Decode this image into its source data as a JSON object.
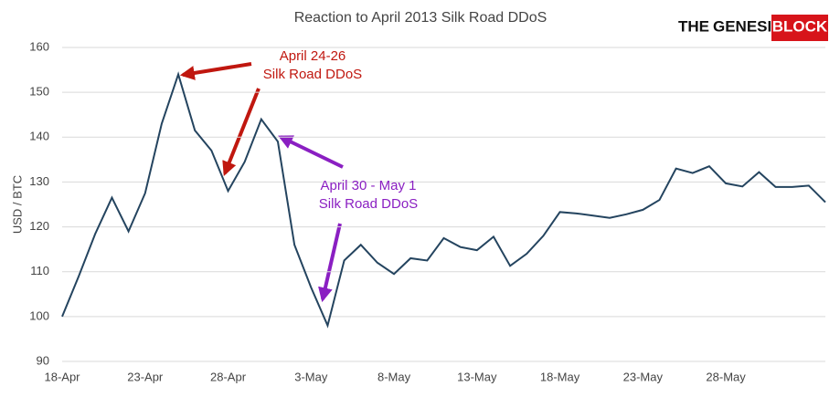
{
  "chart_data": {
    "type": "line",
    "title": "Reaction to April 2013 Silk Road DDoS",
    "y_label": "USD / BTC",
    "logo": [
      "THE",
      "GENESIS",
      "BLOCK"
    ],
    "annotations": [
      {
        "lines": [
          "April 24-26",
          "Silk Road DDoS"
        ],
        "color": "#c0170f"
      },
      {
        "lines": [
          "April 30 - May 1",
          "Silk Road DDoS"
        ],
        "color": "#8a1fc2"
      }
    ],
    "categories": [
      "18-Apr",
      null,
      null,
      null,
      null,
      "23-Apr",
      null,
      null,
      null,
      null,
      "28-Apr",
      null,
      null,
      null,
      null,
      "3-May",
      null,
      null,
      null,
      null,
      "8-May",
      null,
      null,
      null,
      null,
      "13-May",
      null,
      null,
      null,
      null,
      "18-May",
      null,
      null,
      null,
      null,
      "23-May",
      null,
      null,
      null,
      null,
      "28-May",
      null,
      null,
      null,
      null,
      null,
      null
    ],
    "series": [
      {
        "name": "USD / BTC",
        "color": "#24445f",
        "values": [
          100,
          109,
          118.5,
          126.5,
          119,
          127.5,
          143,
          154,
          141.5,
          137,
          128,
          134.5,
          144,
          139,
          116,
          106.5,
          98,
          112.5,
          116,
          112,
          109.5,
          113,
          112.5,
          117.5,
          115.5,
          114.8,
          117.8,
          111.3,
          114,
          118,
          123.3,
          123,
          122.5,
          122,
          122.8,
          123.8,
          126,
          133,
          132,
          133.5,
          129.7,
          129,
          132.2,
          128.9,
          128.9,
          129.2,
          125.5
        ]
      }
    ],
    "ylim": [
      90,
      160
    ],
    "yticks": [
      90,
      100,
      110,
      120,
      130,
      140,
      150,
      160
    ],
    "grid": true
  }
}
